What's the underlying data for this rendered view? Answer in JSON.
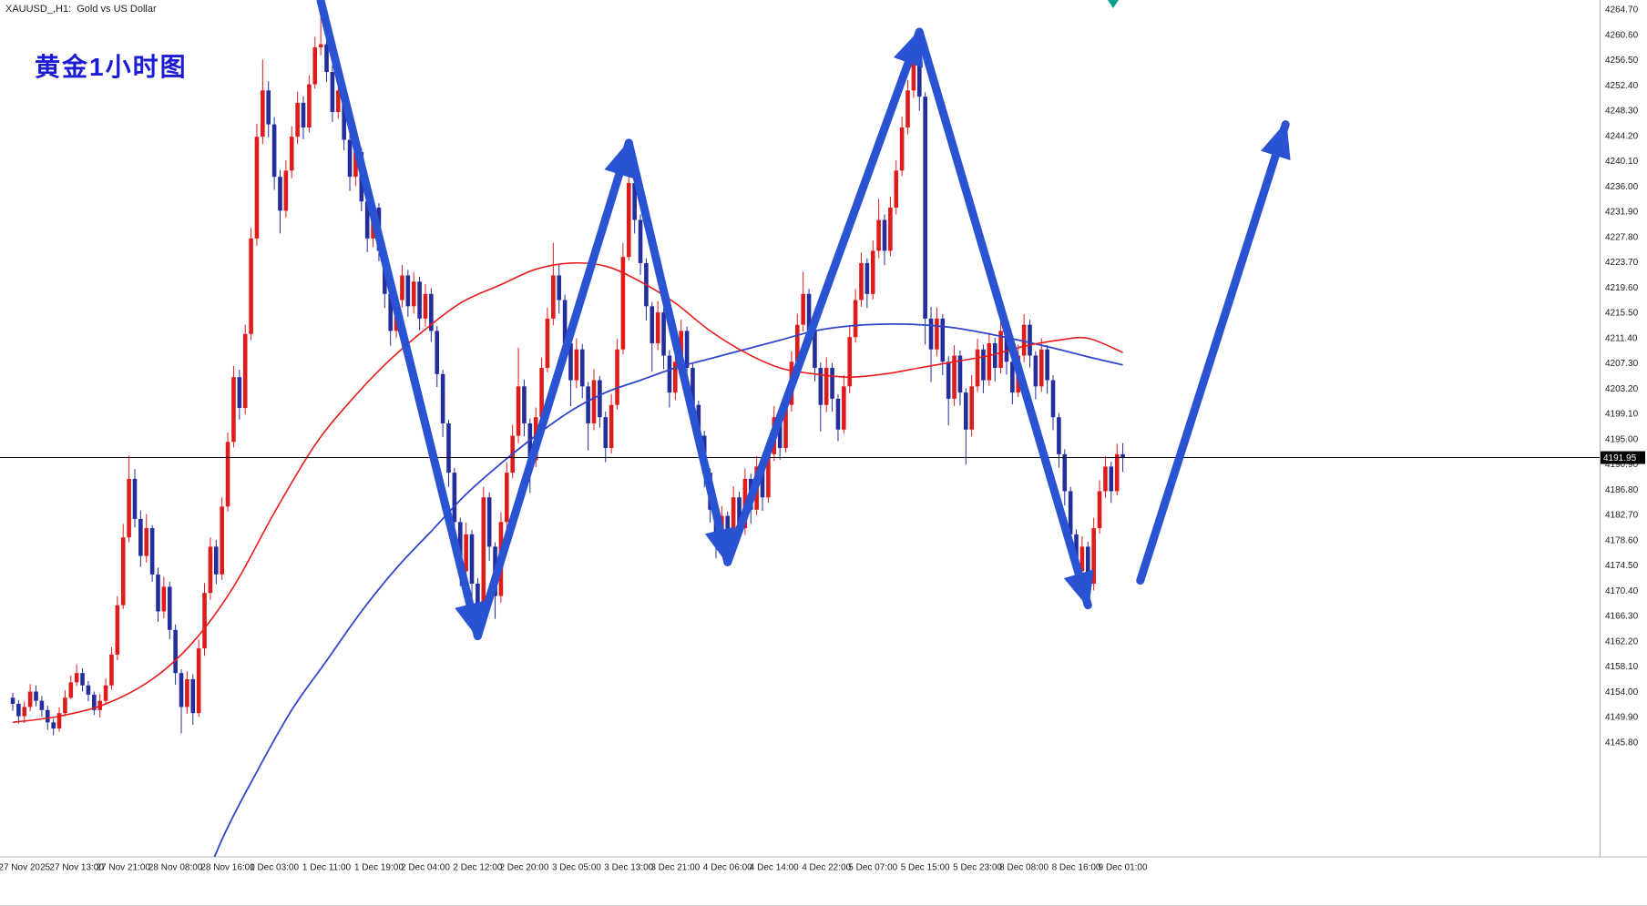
{
  "window": {
    "title": "XAUUSD_,H1:  Gold vs US Dollar"
  },
  "annotation": {
    "text": "黄金1小时图"
  },
  "current_price": {
    "value": "4191.95"
  },
  "colors": {
    "bull_candle": "#dd1c1c",
    "bear_candle": "#232e9c",
    "ma_fast": "#e81c1c",
    "ma_slow": "#2f45cc",
    "trend_arrow": "#2a53d4",
    "annotation_blue": "#1b1bd4",
    "current_price_bg": "#000000",
    "current_price_text": "#ffffff",
    "axis_text": "#1c1c1c",
    "marker_teal": "#0b9f92",
    "bid_line": "#000000"
  },
  "chart_data": {
    "type": "candlestick",
    "symbol": "XAUUSD",
    "timeframe": "H1",
    "description": "Gold vs US Dollar",
    "title": "XAUUSD_,H1:  Gold vs US Dollar",
    "grid": false,
    "legend": false,
    "price_axis": {
      "min": 4145.8,
      "max": 4264.7,
      "tick_step": 4.1,
      "ticks": [
        "4264.70",
        "4260.60",
        "4256.50",
        "4252.40",
        "4248.30",
        "4244.20",
        "4240.10",
        "4236.00",
        "4231.90",
        "4227.80",
        "4223.70",
        "4219.60",
        "4215.50",
        "4211.40",
        "4207.30",
        "4203.20",
        "4199.10",
        "4195.00",
        "4190.90",
        "4186.80",
        "4182.70",
        "4178.60",
        "4174.50",
        "4170.40",
        "4166.30",
        "4162.20",
        "4158.10",
        "4154.00",
        "4149.90",
        "4145.80"
      ]
    },
    "time_labels": [
      {
        "index": 2,
        "label": "27 Nov 2025"
      },
      {
        "index": 11,
        "label": "27 Nov 13:00"
      },
      {
        "index": 19,
        "label": "27 Nov 21:00"
      },
      {
        "index": 28,
        "label": "28 Nov 08:00"
      },
      {
        "index": 37,
        "label": "28 Nov 16:00"
      },
      {
        "index": 45,
        "label": "1 Dec 03:00"
      },
      {
        "index": 54,
        "label": "1 Dec 11:00"
      },
      {
        "index": 63,
        "label": "1 Dec 19:00"
      },
      {
        "index": 71,
        "label": "2 Dec 04:00"
      },
      {
        "index": 80,
        "label": "2 Dec 12:00"
      },
      {
        "index": 88,
        "label": "2 Dec 20:00"
      },
      {
        "index": 97,
        "label": "3 Dec 05:00"
      },
      {
        "index": 106,
        "label": "3 Dec 13:00"
      },
      {
        "index": 114,
        "label": "3 Dec 21:00"
      },
      {
        "index": 123,
        "label": "4 Dec 06:00"
      },
      {
        "index": 131,
        "label": "4 Dec 14:00"
      },
      {
        "index": 140,
        "label": "4 Dec 22:00"
      },
      {
        "index": 148,
        "label": "5 Dec 07:00"
      },
      {
        "index": 157,
        "label": "5 Dec 15:00"
      },
      {
        "index": 166,
        "label": "5 Dec 23:00"
      },
      {
        "index": 174,
        "label": "8 Dec 08:00"
      },
      {
        "index": 183,
        "label": "8 Dec 16:00"
      },
      {
        "index": 191,
        "label": "9 Dec 01:00"
      }
    ],
    "open_rule": "each candle opens at the previous candle close",
    "first_open": 4153.0,
    "last_price": 4191.95,
    "candles_hlc": [
      [
        4153.8,
        4150.9,
        4152
      ],
      [
        4152.6,
        4148.8,
        4150
      ],
      [
        4152.4,
        4148.9,
        4151.5
      ],
      [
        4155.2,
        4150.8,
        4154
      ],
      [
        4155.0,
        4151.6,
        4152.5
      ],
      [
        4153.3,
        4149.9,
        4151
      ],
      [
        4151.7,
        4147.8,
        4149
      ],
      [
        4149.6,
        4146.9,
        4148
      ],
      [
        4151.4,
        4147.5,
        4150.5
      ],
      [
        4154.2,
        4150.0,
        4153
      ],
      [
        4156.6,
        4152.7,
        4155.5
      ],
      [
        4158.4,
        4154.9,
        4157
      ],
      [
        4157.8,
        4154.0,
        4155
      ],
      [
        4155.7,
        4152.4,
        4153.5
      ],
      [
        4154.0,
        4150.2,
        4151
      ],
      [
        4153.6,
        4149.8,
        4152.5
      ],
      [
        4156.1,
        4151.9,
        4155
      ],
      [
        4161.2,
        4154.3,
        4160
      ],
      [
        4169.5,
        4159.1,
        4168
      ],
      [
        4181.2,
        4167.4,
        4179
      ],
      [
        4192.3,
        4178.2,
        4188.5
      ],
      [
        4190.1,
        4180.6,
        4182
      ],
      [
        4183.4,
        4174.2,
        4176
      ],
      [
        4182.8,
        4174.9,
        4180.5
      ],
      [
        4181.0,
        4171.8,
        4173
      ],
      [
        4174.1,
        4165.3,
        4167
      ],
      [
        4172.6,
        4165.9,
        4171
      ],
      [
        4171.8,
        4162.5,
        4164
      ],
      [
        4164.9,
        4155.1,
        4157
      ],
      [
        4157.6,
        4147.2,
        4151.5
      ],
      [
        4157.3,
        4150.4,
        4156
      ],
      [
        4156.8,
        4148.6,
        4150.5
      ],
      [
        4162.4,
        4149.9,
        4161
      ],
      [
        4171.6,
        4159.8,
        4170
      ],
      [
        4179.0,
        4168.9,
        4177.5
      ],
      [
        4178.6,
        4171.4,
        4173
      ],
      [
        4185.5,
        4172.1,
        4184
      ],
      [
        4196.0,
        4183.2,
        4194.5
      ],
      [
        4206.8,
        4193.6,
        4205
      ],
      [
        4206.2,
        4198.1,
        4200
      ],
      [
        4213.5,
        4199.0,
        4212
      ],
      [
        4229.2,
        4211.0,
        4227.5
      ],
      [
        4246.1,
        4226.3,
        4244
      ],
      [
        4256.5,
        4242.8,
        4251.5
      ],
      [
        4253.0,
        4243.9,
        4246
      ],
      [
        4247.2,
        4235.4,
        4237.5
      ],
      [
        4238.6,
        4228.3,
        4232
      ],
      [
        4240.2,
        4230.9,
        4238.5
      ],
      [
        4245.7,
        4237.3,
        4244
      ],
      [
        4251.3,
        4242.8,
        4249.5
      ],
      [
        4250.6,
        4243.6,
        4245.5
      ],
      [
        4254.0,
        4244.7,
        4252.5
      ],
      [
        4260.2,
        4251.8,
        4258.5
      ],
      [
        4264.7,
        4257.2,
        4259
      ],
      [
        4260.3,
        4252.9,
        4254.5
      ],
      [
        4255.6,
        4246.4,
        4248
      ],
      [
        4253.2,
        4246.9,
        4251.5
      ],
      [
        4252.3,
        4241.8,
        4243.5
      ],
      [
        4244.6,
        4235.2,
        4237.5
      ],
      [
        4243.3,
        4236.0,
        4241.5
      ],
      [
        4242.2,
        4231.9,
        4233.5
      ],
      [
        4234.4,
        4225.3,
        4227.5
      ],
      [
        4234.0,
        4226.1,
        4232.5
      ],
      [
        4233.2,
        4223.8,
        4225.5
      ],
      [
        4226.4,
        4216.2,
        4218.5
      ],
      [
        4219.3,
        4210.1,
        4212.5
      ],
      [
        4219.0,
        4211.4,
        4217.5
      ],
      [
        4223.2,
        4216.3,
        4221.5
      ],
      [
        4222.4,
        4214.8,
        4216.5
      ],
      [
        4222.0,
        4215.3,
        4220.5
      ],
      [
        4221.3,
        4212.6,
        4214.5
      ],
      [
        4220.1,
        4213.2,
        4218.5
      ],
      [
        4219.4,
        4210.7,
        4212.5
      ],
      [
        4213.3,
        4203.4,
        4205.5
      ],
      [
        4206.2,
        4195.3,
        4197.5
      ],
      [
        4198.1,
        4187.2,
        4189.5
      ],
      [
        4190.3,
        4179.4,
        4181.5
      ],
      [
        4182.2,
        4171.1,
        4173.5
      ],
      [
        4181.4,
        4171.9,
        4179.5
      ],
      [
        4180.2,
        4168.3,
        4171.5
      ],
      [
        4172.4,
        4163.5,
        4165.5
      ],
      [
        4187.2,
        4164.2,
        4185.5
      ],
      [
        4186.3,
        4175.2,
        4177.5
      ],
      [
        4178.2,
        4165.8,
        4169.5
      ],
      [
        4183.1,
        4168.4,
        4181.5
      ],
      [
        4191.2,
        4180.3,
        4189.5
      ],
      [
        4197.3,
        4188.6,
        4195.5
      ],
      [
        4209.8,
        4194.3,
        4203.5
      ],
      [
        4204.6,
        4195.4,
        4197.5
      ],
      [
        4198.3,
        4186.2,
        4191.5
      ],
      [
        4200.1,
        4190.4,
        4198.5
      ],
      [
        4208.2,
        4197.6,
        4206.5
      ],
      [
        4216.3,
        4205.8,
        4214.5
      ],
      [
        4226.8,
        4213.4,
        4221.5
      ],
      [
        4223.2,
        4215.3,
        4217.5
      ],
      [
        4218.4,
        4208.6,
        4210.5
      ],
      [
        4211.2,
        4200.3,
        4204.5
      ],
      [
        4211.3,
        4203.2,
        4209.5
      ],
      [
        4210.4,
        4201.6,
        4203.5
      ],
      [
        4204.2,
        4193.1,
        4197.5
      ],
      [
        4206.3,
        4196.4,
        4204.5
      ],
      [
        4205.2,
        4196.8,
        4198.5
      ],
      [
        4199.4,
        4191.2,
        4193.5
      ],
      [
        4202.3,
        4192.6,
        4200.5
      ],
      [
        4211.2,
        4199.8,
        4209.5
      ],
      [
        4226.8,
        4208.7,
        4224.5
      ],
      [
        4240.6,
        4223.9,
        4236.5
      ],
      [
        4238.2,
        4228.3,
        4230.5
      ],
      [
        4231.4,
        4221.6,
        4223.5
      ],
      [
        4224.3,
        4214.2,
        4216.5
      ],
      [
        4217.2,
        4205.9,
        4210.5
      ],
      [
        4217.3,
        4209.4,
        4215.5
      ],
      [
        4216.2,
        4206.3,
        4208.5
      ],
      [
        4209.4,
        4200.1,
        4202.5
      ],
      [
        4209.2,
        4201.3,
        4207.5
      ],
      [
        4214.3,
        4206.4,
        4212.5
      ],
      [
        4213.2,
        4204.6,
        4206.5
      ],
      [
        4207.3,
        4198.4,
        4200.5
      ],
      [
        4201.2,
        4193.3,
        4195.5
      ],
      [
        4196.3,
        4187.1,
        4189.5
      ],
      [
        4190.2,
        4181.4,
        4183.5
      ],
      [
        4184.3,
        4175.6,
        4177.5
      ],
      [
        4184.1,
        4176.2,
        4182.5
      ],
      [
        4183.2,
        4174.9,
        4176.5
      ],
      [
        4187.3,
        4175.8,
        4185.5
      ],
      [
        4186.4,
        4178.3,
        4180.5
      ],
      [
        4190.2,
        4179.4,
        4188.5
      ],
      [
        4189.3,
        4181.2,
        4183.5
      ],
      [
        4192.2,
        4182.6,
        4190.5
      ],
      [
        4191.4,
        4183.3,
        4185.5
      ],
      [
        4194.2,
        4184.6,
        4192.5
      ],
      [
        4200.3,
        4191.4,
        4198.5
      ],
      [
        4199.2,
        4191.6,
        4193.5
      ],
      [
        4202.3,
        4192.8,
        4200.5
      ],
      [
        4209.2,
        4199.4,
        4207.5
      ],
      [
        4215.3,
        4206.6,
        4213.5
      ],
      [
        4222.1,
        4212.4,
        4218.5
      ],
      [
        4219.3,
        4210.6,
        4212.5
      ],
      [
        4213.2,
        4204.3,
        4206.5
      ],
      [
        4207.4,
        4196.2,
        4200.5
      ],
      [
        4208.2,
        4199.3,
        4206.5
      ],
      [
        4207.3,
        4199.4,
        4201.5
      ],
      [
        4202.2,
        4194.6,
        4196.5
      ],
      [
        4205.3,
        4195.8,
        4203.5
      ],
      [
        4213.2,
        4202.4,
        4211.5
      ],
      [
        4219.3,
        4210.6,
        4217.5
      ],
      [
        4225.2,
        4216.4,
        4223.5
      ],
      [
        4224.3,
        4216.2,
        4218.5
      ],
      [
        4227.2,
        4217.6,
        4225.5
      ],
      [
        4233.9,
        4224.3,
        4230.5
      ],
      [
        4231.4,
        4223.2,
        4225.5
      ],
      [
        4234.3,
        4224.6,
        4232.5
      ],
      [
        4240.2,
        4231.4,
        4238.5
      ],
      [
        4247.3,
        4237.6,
        4245.5
      ],
      [
        4253.2,
        4244.4,
        4251.5
      ],
      [
        4259.8,
        4250.3,
        4256.5
      ],
      [
        4257.6,
        4248.2,
        4250.5
      ],
      [
        4251.2,
        4210.3,
        4214.5
      ],
      [
        4216.4,
        4204.2,
        4209.5
      ],
      [
        4216.3,
        4208.4,
        4214.5
      ],
      [
        4215.2,
        4205.3,
        4207.5
      ],
      [
        4208.4,
        4197.2,
        4201.5
      ],
      [
        4210.2,
        4200.3,
        4208.5
      ],
      [
        4209.3,
        4200.4,
        4202.5
      ],
      [
        4203.2,
        4190.8,
        4196.5
      ],
      [
        4205.3,
        4195.4,
        4203.5
      ],
      [
        4211.2,
        4202.6,
        4209.5
      ],
      [
        4210.3,
        4202.4,
        4204.5
      ],
      [
        4212.2,
        4203.6,
        4210.5
      ],
      [
        4211.4,
        4204.3,
        4206.5
      ],
      [
        4214.2,
        4205.6,
        4212.5
      ],
      [
        4213.3,
        4205.4,
        4207.5
      ],
      [
        4208.2,
        4200.6,
        4202.5
      ],
      [
        4210.3,
        4201.8,
        4208.5
      ],
      [
        4215.2,
        4207.4,
        4213.5
      ],
      [
        4214.3,
        4206.6,
        4208.5
      ],
      [
        4209.2,
        4201.4,
        4203.5
      ],
      [
        4211.3,
        4202.6,
        4209.5
      ],
      [
        4210.2,
        4202.3,
        4204.5
      ],
      [
        4205.3,
        4196.4,
        4198.5
      ],
      [
        4199.2,
        4190.3,
        4192.5
      ],
      [
        4193.3,
        4184.2,
        4186.5
      ],
      [
        4187.2,
        4177.4,
        4179.5
      ],
      [
        4180.3,
        4170.9,
        4173.5
      ],
      [
        4179.2,
        4171.6,
        4177.5
      ],
      [
        4178.3,
        4168.9,
        4171.5
      ],
      [
        4182.2,
        4170.4,
        4180.5
      ],
      [
        4188.3,
        4179.6,
        4186.5
      ],
      [
        4192.2,
        4185.4,
        4190.5
      ],
      [
        4191.3,
        4184.6,
        4186.5
      ],
      [
        4194.2,
        4185.8,
        4192.5
      ],
      [
        4194.3,
        4189.6,
        4191.95
      ]
    ],
    "ma_fast_red": [
      [
        0,
        4149
      ],
      [
        8,
        4150
      ],
      [
        16,
        4152
      ],
      [
        24,
        4156
      ],
      [
        31,
        4162
      ],
      [
        38,
        4171
      ],
      [
        45,
        4183
      ],
      [
        52,
        4194
      ],
      [
        58,
        4201
      ],
      [
        64,
        4207
      ],
      [
        70,
        4212
      ],
      [
        77,
        4217
      ],
      [
        84,
        4220
      ],
      [
        90,
        4222.5
      ],
      [
        96,
        4223.5
      ],
      [
        102,
        4223
      ],
      [
        108,
        4220.5
      ],
      [
        114,
        4217
      ],
      [
        120,
        4212.5
      ],
      [
        126,
        4209
      ],
      [
        132,
        4206.5
      ],
      [
        138,
        4205.5
      ],
      [
        144,
        4205
      ],
      [
        150,
        4205.5
      ],
      [
        156,
        4206.5
      ],
      [
        162,
        4207.5
      ],
      [
        168,
        4208.5
      ],
      [
        174,
        4210
      ],
      [
        180,
        4211
      ],
      [
        185,
        4211.3
      ],
      [
        191,
        4209
      ]
    ],
    "ma_slow_blue": [
      [
        30,
        4116
      ],
      [
        36,
        4130
      ],
      [
        42,
        4141
      ],
      [
        48,
        4151
      ],
      [
        54,
        4159
      ],
      [
        60,
        4167
      ],
      [
        66,
        4174
      ],
      [
        72,
        4180
      ],
      [
        78,
        4186
      ],
      [
        84,
        4191
      ],
      [
        90,
        4195.5
      ],
      [
        96,
        4199.5
      ],
      [
        102,
        4202.5
      ],
      [
        108,
        4204.5
      ],
      [
        114,
        4206.5
      ],
      [
        120,
        4208
      ],
      [
        126,
        4209.5
      ],
      [
        132,
        4211
      ],
      [
        138,
        4212.5
      ],
      [
        144,
        4213.3
      ],
      [
        150,
        4213.6
      ],
      [
        156,
        4213.5
      ],
      [
        162,
        4213
      ],
      [
        168,
        4212
      ],
      [
        174,
        4210.8
      ],
      [
        180,
        4209.5
      ],
      [
        185,
        4208.3
      ],
      [
        191,
        4207
      ]
    ],
    "trend_arrows": {
      "zigzag": [
        [
          53,
          4266
        ],
        [
          80,
          4163
        ],
        [
          106,
          4243
        ],
        [
          123,
          4175
        ],
        [
          156,
          4261
        ],
        [
          185,
          4168
        ]
      ],
      "projection": [
        [
          194,
          4172
        ],
        [
          219,
          4246
        ]
      ]
    }
  }
}
